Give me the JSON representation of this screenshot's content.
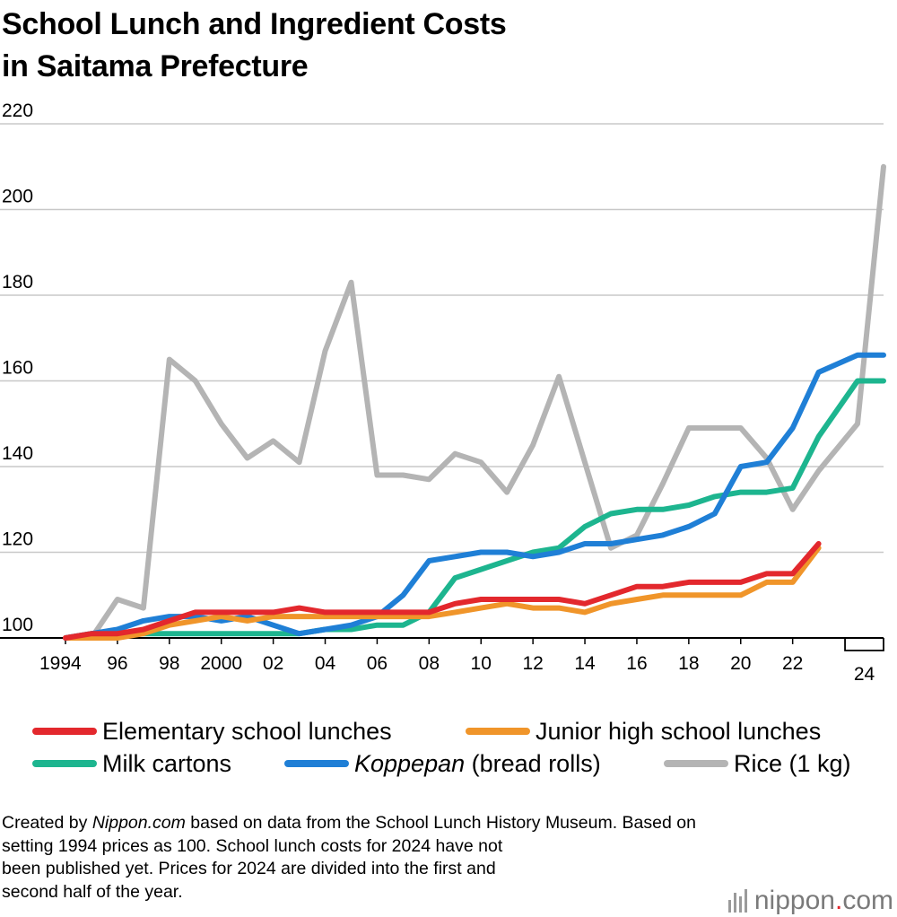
{
  "title_line1": "School Lunch and Ingredient Costs",
  "title_line2": "in Saitama Prefecture",
  "note": {
    "p1": "Created by ",
    "p1_italic": "Nippon.com",
    "p2": " based on data from the School Lunch History Museum. Based on",
    "line2": "setting 1994 prices as 100. School lunch costs for 2024 have not",
    "line3": "been published yet. Prices for 2024 are divided into the first and",
    "line4": "second half of the year."
  },
  "brand": {
    "name": "nippon",
    "dot": ".",
    "suffix": "com",
    "dot_color": "#e3242b"
  },
  "chart_data": {
    "type": "line",
    "title": "School Lunch and Ingredient Costs in Saitama Prefecture",
    "xlabel": "",
    "ylabel": "",
    "ylim": [
      100,
      220
    ],
    "yticks": [
      100,
      120,
      140,
      160,
      180,
      200,
      220
    ],
    "xlim": [
      1994,
      2025.5
    ],
    "xtick_labels": [
      {
        "x": 1994,
        "label": "1994"
      },
      {
        "x": 1996,
        "label": "96"
      },
      {
        "x": 1998,
        "label": "98"
      },
      {
        "x": 2000,
        "label": "2000"
      },
      {
        "x": 2002,
        "label": "02"
      },
      {
        "x": 2004,
        "label": "04"
      },
      {
        "x": 2006,
        "label": "06"
      },
      {
        "x": 2008,
        "label": "08"
      },
      {
        "x": 2010,
        "label": "10"
      },
      {
        "x": 2012,
        "label": "12"
      },
      {
        "x": 2014,
        "label": "14"
      },
      {
        "x": 2016,
        "label": "16"
      },
      {
        "x": 2018,
        "label": "18"
      },
      {
        "x": 2020,
        "label": "20"
      },
      {
        "x": 2022,
        "label": "22"
      }
    ],
    "bracket": {
      "label": "24",
      "x_start": 2024.5,
      "x_end": 2025.5
    },
    "grid": true,
    "legend_position": "bottom",
    "series": [
      {
        "name": "Rice (1 kg)",
        "color": "#b4b4b4",
        "italic_part": "",
        "x": [
          1994,
          1995,
          1996,
          1997,
          1998,
          1999,
          2000,
          2001,
          2002,
          2003,
          2004,
          2005,
          2006,
          2007,
          2008,
          2009,
          2010,
          2011,
          2012,
          2013,
          2014,
          2015,
          2016,
          2017,
          2018,
          2019,
          2020,
          2021,
          2022,
          2023,
          2024.5,
          2025.5
        ],
        "values": [
          100,
          100,
          109,
          107,
          165,
          160,
          150,
          142,
          146,
          141,
          167,
          183,
          138,
          138,
          137,
          143,
          141,
          134,
          145,
          161,
          141,
          121,
          124,
          136,
          149,
          149,
          149,
          142,
          130,
          139,
          150,
          210
        ]
      },
      {
        "name": "Milk cartons",
        "color": "#1db58f",
        "italic_part": "",
        "x": [
          1994,
          1995,
          1996,
          1997,
          1998,
          1999,
          2000,
          2001,
          2002,
          2003,
          2004,
          2005,
          2006,
          2007,
          2008,
          2009,
          2010,
          2011,
          2012,
          2013,
          2014,
          2015,
          2016,
          2017,
          2018,
          2019,
          2020,
          2021,
          2022,
          2023,
          2024.5,
          2025.5
        ],
        "values": [
          100,
          101,
          101,
          101,
          101,
          101,
          101,
          101,
          101,
          101,
          102,
          102,
          103,
          103,
          106,
          114,
          116,
          118,
          120,
          121,
          126,
          129,
          130,
          130,
          131,
          133,
          134,
          134,
          135,
          147,
          160,
          160
        ]
      },
      {
        "name": "(bread rolls)",
        "color": "#1f7fd6",
        "italic_part": "Koppepan",
        "x": [
          1994,
          1995,
          1996,
          1997,
          1998,
          1999,
          2000,
          2001,
          2002,
          2003,
          2004,
          2005,
          2006,
          2007,
          2008,
          2009,
          2010,
          2011,
          2012,
          2013,
          2014,
          2015,
          2016,
          2017,
          2018,
          2019,
          2020,
          2021,
          2022,
          2023,
          2024.5,
          2025.5
        ],
        "values": [
          100,
          101,
          102,
          104,
          105,
          105,
          104,
          105,
          103,
          101,
          102,
          103,
          105,
          110,
          118,
          119,
          120,
          120,
          119,
          120,
          122,
          122,
          123,
          124,
          126,
          129,
          140,
          141,
          149,
          162,
          166,
          166
        ]
      },
      {
        "name": "Junior high school lunches",
        "color": "#f0952a",
        "italic_part": "",
        "x": [
          1994,
          1995,
          1996,
          1997,
          1998,
          1999,
          2000,
          2001,
          2002,
          2003,
          2004,
          2005,
          2006,
          2007,
          2008,
          2009,
          2010,
          2011,
          2012,
          2013,
          2014,
          2015,
          2016,
          2017,
          2018,
          2019,
          2020,
          2021,
          2022,
          2023
        ],
        "values": [
          100,
          100,
          100,
          101,
          103,
          104,
          105,
          104,
          105,
          105,
          105,
          105,
          105,
          105,
          105,
          106,
          107,
          108,
          107,
          107,
          106,
          108,
          109,
          110,
          110,
          110,
          110,
          113,
          113,
          121
        ]
      },
      {
        "name": "Elementary school lunches",
        "color": "#e3282d",
        "italic_part": "",
        "x": [
          1994,
          1995,
          1996,
          1997,
          1998,
          1999,
          2000,
          2001,
          2002,
          2003,
          2004,
          2005,
          2006,
          2007,
          2008,
          2009,
          2010,
          2011,
          2012,
          2013,
          2014,
          2015,
          2016,
          2017,
          2018,
          2019,
          2020,
          2021,
          2022,
          2023
        ],
        "values": [
          100,
          101,
          101,
          102,
          104,
          106,
          106,
          106,
          106,
          107,
          106,
          106,
          106,
          106,
          106,
          108,
          109,
          109,
          109,
          109,
          108,
          110,
          112,
          112,
          113,
          113,
          113,
          115,
          115,
          122
        ]
      }
    ]
  }
}
